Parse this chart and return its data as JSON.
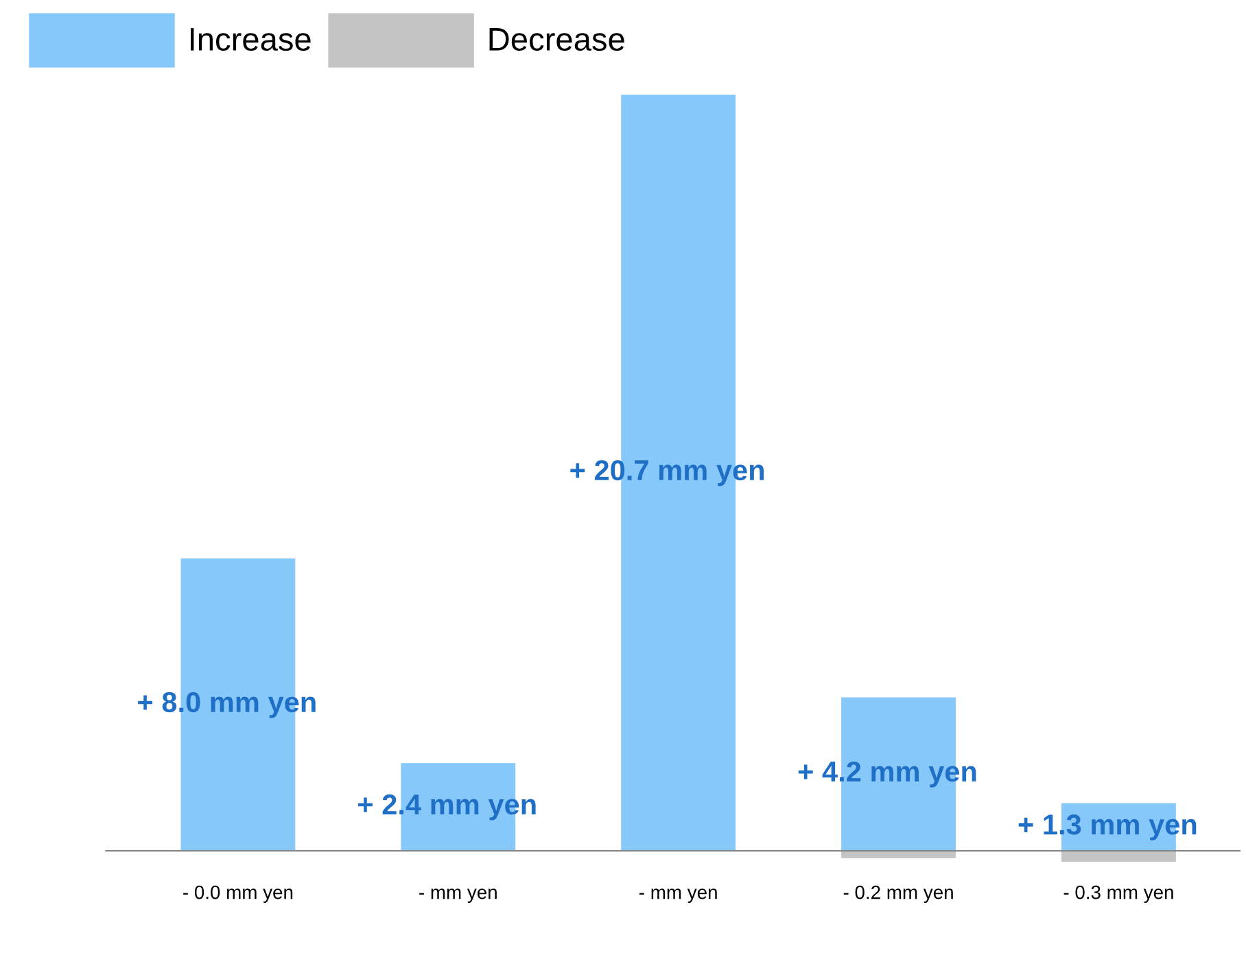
{
  "chart_data": {
    "type": "bar",
    "categories": [
      "- 0.0 mm yen",
      "- mm yen",
      "- mm yen",
      "- 0.2 mm yen",
      "- 0.3 mm yen"
    ],
    "series": [
      {
        "name": "Increase",
        "color": "#87c8fb",
        "values": [
          8.0,
          2.4,
          20.7,
          4.2,
          1.3
        ],
        "value_labels": [
          "+ 8.0 mm yen",
          "+ 2.4 mm yen",
          "+ 20.7 mm yen",
          "+ 4.2 mm yen",
          "+ 1.3 mm yen"
        ]
      },
      {
        "name": "Decrease",
        "color": "#c4c4c4",
        "values": [
          0.0,
          null,
          null,
          -0.2,
          -0.3
        ]
      }
    ],
    "legend": "top left",
    "grid": false
  }
}
